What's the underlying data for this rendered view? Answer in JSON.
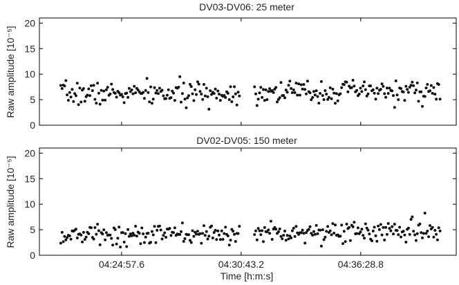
{
  "chart_data": [
    {
      "type": "scatter",
      "title": "DV03-DV06: 25 meter",
      "ylabel": "Raw amplitude [10⁻⁵]",
      "xlabel": "",
      "ylim": [
        0,
        21
      ],
      "yticks": [
        0,
        5,
        10,
        15,
        20
      ],
      "xticks": [
        "04:24:57.6",
        "04:30:43.2",
        "04:36:28.8"
      ],
      "xticks_visible": false,
      "xlim": [
        "04:21:00",
        "04:41:05"
      ],
      "gap": [
        "04:30:40",
        "04:31:20"
      ],
      "segments": [
        {
          "start": "04:22:00",
          "end": "04:30:40",
          "mean": 6.2,
          "spread": 1.1
        },
        {
          "start": "04:31:20",
          "end": "04:40:20",
          "mean": 6.6,
          "spread": 1.1
        }
      ],
      "n_points": 290,
      "seed": 7
    },
    {
      "type": "scatter",
      "title": "DV02-DV05: 150 meter",
      "ylabel": "Raw amplitude [10⁻⁵]",
      "xlabel": "Time [h:m:s]",
      "ylim": [
        0,
        21
      ],
      "yticks": [
        0,
        5,
        10,
        15,
        20
      ],
      "xticks": [
        "04:24:57.6",
        "04:30:43.2",
        "04:36:28.8"
      ],
      "xticks_visible": true,
      "xlim": [
        "04:21:00",
        "04:41:05"
      ],
      "gap": [
        "04:30:40",
        "04:31:20"
      ],
      "segments": [
        {
          "start": "04:22:00",
          "end": "04:30:40",
          "mean": 4.0,
          "spread": 1.0
        },
        {
          "start": "04:31:20",
          "end": "04:40:20",
          "mean": 4.6,
          "spread": 1.1
        }
      ],
      "n_points": 290,
      "seed": 13
    }
  ]
}
